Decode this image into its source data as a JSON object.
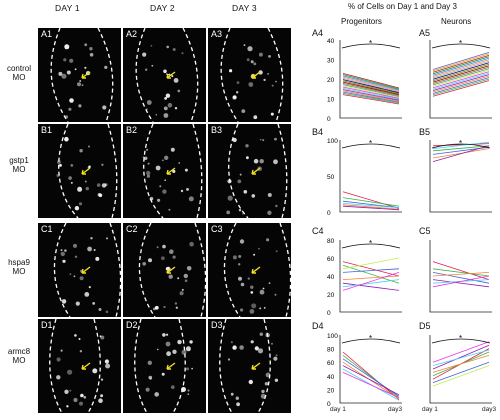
{
  "columns": {
    "day1": "DAY 1",
    "day2": "DAY 2",
    "day3": "DAY 3"
  },
  "rows": [
    {
      "key": "A",
      "label_line1": "control",
      "label_line2": "MO",
      "panels": [
        "A1",
        "A2",
        "A3"
      ]
    },
    {
      "key": "B",
      "label_line1": "gstp1",
      "label_line2": "MO",
      "panels": [
        "B1",
        "B2",
        "B3"
      ]
    },
    {
      "key": "C",
      "label_line1": "hspa9",
      "label_line2": "MO",
      "panels": [
        "C1",
        "C2",
        "C3"
      ]
    },
    {
      "key": "D",
      "label_line1": "armc8",
      "label_line2": "MO",
      "panels": [
        "D1",
        "D2",
        "D3"
      ]
    }
  ],
  "graphs_title": "% of Cells on Day 1 and Day 3",
  "progenitors_header": "Progenitors",
  "neurons_header": "Neurons",
  "x_tick_left": "day 1",
  "x_tick_right": "day3",
  "chart_data": [
    {
      "type": "line",
      "panel": "A4",
      "ylim": [
        0,
        100
      ],
      "yticks": [
        0,
        10,
        20,
        30,
        40
      ],
      "significance": "*",
      "lines": 18
    },
    {
      "type": "line",
      "panel": "A5",
      "ylim": [
        0,
        100
      ],
      "yticks": [],
      "significance": "*",
      "lines": 20
    },
    {
      "type": "line",
      "panel": "B4",
      "ylim": [
        0,
        100
      ],
      "yticks": [
        0,
        50,
        100
      ],
      "significance": "*"
    },
    {
      "type": "line",
      "panel": "B5",
      "ylim": [
        0,
        100
      ],
      "yticks": [],
      "significance": "*"
    },
    {
      "type": "line",
      "panel": "C4",
      "ylim": [
        0,
        100
      ],
      "yticks": [
        0,
        20,
        40,
        60,
        80
      ],
      "significance": "*"
    },
    {
      "type": "line",
      "panel": "C5",
      "ylim": [
        0,
        100
      ],
      "yticks": []
    },
    {
      "type": "line",
      "panel": "D4",
      "ylim": [
        0,
        100
      ],
      "yticks": [
        0,
        20,
        40,
        60,
        80,
        100
      ],
      "significance": "*"
    },
    {
      "type": "line",
      "panel": "D5",
      "ylim": [
        0,
        100
      ],
      "yticks": [],
      "significance": "*"
    }
  ],
  "tick_text": {
    "a4": [
      "40",
      "30",
      "20",
      "10",
      "0"
    ],
    "b4": [
      "100",
      "50",
      "0"
    ],
    "c4": [
      "80",
      "60",
      "40",
      "20",
      "0"
    ],
    "d4": [
      "100",
      "80",
      "60",
      "40",
      "20",
      "0"
    ]
  },
  "colors": {
    "dash": "#ffffff",
    "arrow": "#f2e21a",
    "bg": "#050505"
  }
}
